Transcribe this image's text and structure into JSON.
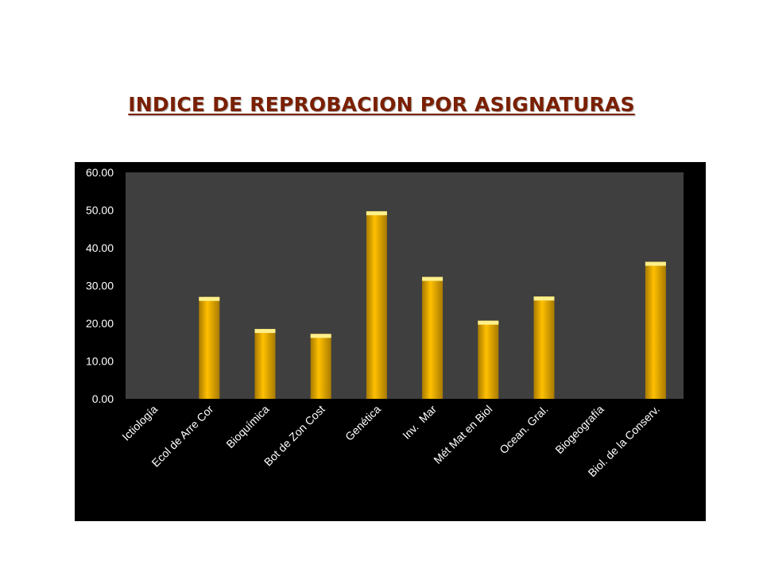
{
  "page": {
    "title": "INDICE DE REPROBACION POR ASIGNATURAS"
  },
  "colors": {
    "bar": "#ffc000",
    "bar_light": "#fff08a",
    "bar_dark": "#a87a00",
    "plot_bg": "#3f3f3f",
    "chart_bg": "#000000",
    "text": "#ffffff"
  },
  "chart_data": {
    "type": "bar",
    "title": "",
    "xlabel": "",
    "ylabel": "",
    "categories": [
      "Ictiología",
      "Ecol de Arre Cor",
      "Bioquímica",
      "Bot de Zon Cost",
      "Genética",
      "Inv.  Mar",
      "Mét Mat en Biol",
      "Ocean. Gral.",
      "Biogeografía",
      "Biol. de la Conserv."
    ],
    "values": [
      0,
      27,
      18.5,
      17.2,
      49.7,
      32.3,
      20.7,
      27.1,
      0,
      36.3
    ],
    "ylim": [
      0,
      60
    ],
    "yticks": [
      0,
      10,
      20,
      30,
      40,
      50,
      60
    ],
    "ytick_labels": [
      "0.00",
      "10.00",
      "20.00",
      "30.00",
      "40.00",
      "50.00",
      "60.00"
    ],
    "grid": false,
    "legend": "none"
  }
}
